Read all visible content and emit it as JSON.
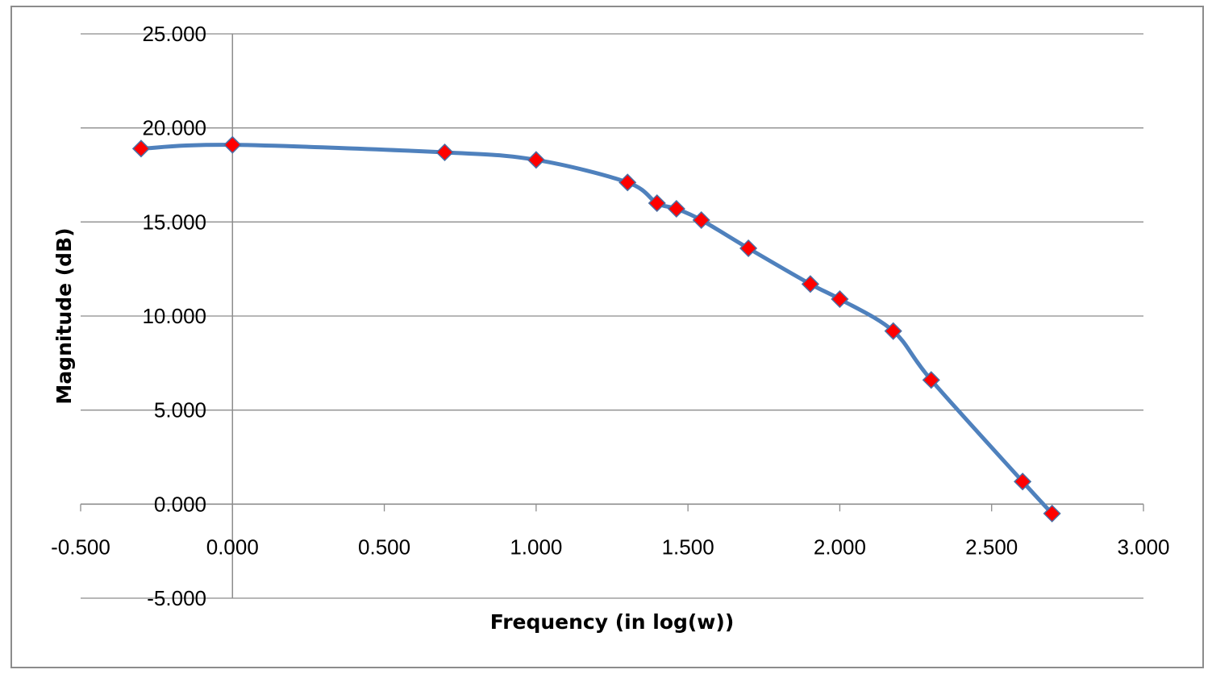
{
  "chart_data": {
    "type": "line",
    "smooth": true,
    "title": "",
    "xlabel": "Frequency (in log(w))",
    "ylabel": "Magnitude (dB)",
    "xlim": [
      -0.5,
      3.0
    ],
    "ylim": [
      -5.0,
      25.0
    ],
    "x_ticks": [
      -0.5,
      0.0,
      0.5,
      1.0,
      1.5,
      2.0,
      2.5,
      3.0
    ],
    "y_ticks": [
      -5.0,
      0.0,
      5.0,
      10.0,
      15.0,
      20.0,
      25.0
    ],
    "x_tick_labels": [
      "-0.500",
      "0.000",
      "0.500",
      "1.000",
      "1.500",
      "2.000",
      "2.500",
      "3.000"
    ],
    "y_tick_labels": [
      "-5.000",
      "0.000",
      "5.000",
      "10.000",
      "15.000",
      "20.000",
      "25.000"
    ],
    "grid": {
      "horizontal": true,
      "vertical": false
    },
    "legend": "none",
    "line_color": "#4f81bd",
    "marker_color": "#ff0000",
    "marker_shape": "diamond",
    "series": [
      {
        "x": [
          -0.301,
          0.0,
          0.699,
          1.0,
          1.301,
          1.398,
          1.462,
          1.544,
          1.699,
          1.903,
          2.0,
          2.176,
          2.301,
          2.602,
          2.699
        ],
        "y": [
          18.9,
          19.1,
          18.7,
          18.3,
          17.1,
          16.0,
          15.7,
          15.1,
          13.6,
          11.7,
          10.9,
          9.2,
          6.6,
          1.2,
          -0.5
        ]
      }
    ]
  }
}
